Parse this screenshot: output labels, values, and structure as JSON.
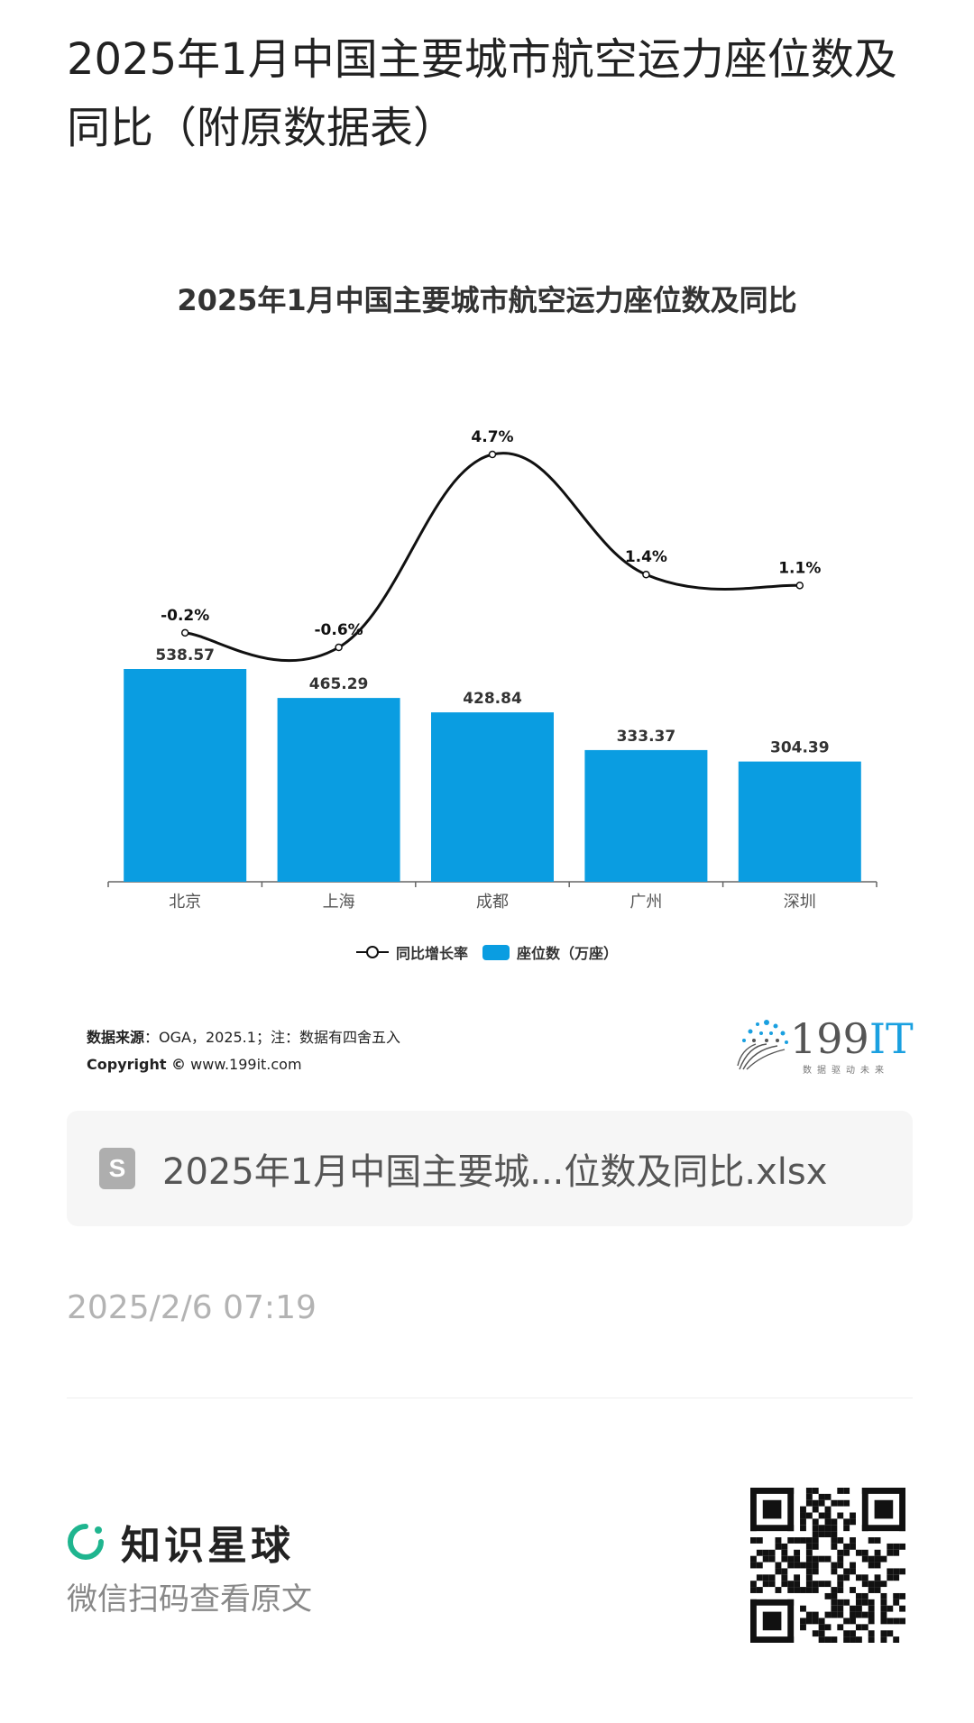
{
  "post": {
    "title": "2025年1月中国主要城市航空运力座位数及同比（附原数据表）"
  },
  "chart_data": {
    "type": "bar",
    "title": "2025年1月中国主要城市航空运力座位数及同比",
    "categories": [
      "北京",
      "上海",
      "成都",
      "广州",
      "深圳"
    ],
    "series": [
      {
        "name": "座位数（万座）",
        "type": "bar",
        "values": [
          538.57,
          465.29,
          428.84,
          333.37,
          304.39
        ],
        "labels": [
          "538.57",
          "465.29",
          "428.84",
          "333.37",
          "304.39"
        ],
        "color": "#0a9de1"
      },
      {
        "name": "同比增长率",
        "type": "line",
        "values": [
          -0.2,
          -0.6,
          4.7,
          1.4,
          1.1
        ],
        "labels": [
          "-0.2%",
          "-0.6%",
          "4.7%",
          "1.4%",
          "1.1%"
        ],
        "color": "#111111"
      }
    ],
    "legend": [
      "同比增长率",
      "座位数（万座）"
    ],
    "legend_position": "bottom"
  },
  "source": {
    "label": "数据来源",
    "text": "：OGA，2025.1；注：数据有四舍五入",
    "copyright_label": "Copyright ©",
    "copyright_url": "www.199it.com"
  },
  "logo": {
    "num": "199",
    "it": "IT",
    "tagline": "数据驱动未来"
  },
  "file": {
    "icon_letter": "S",
    "name": "2025年1月中国主要城...位数及同比.xlsx"
  },
  "timestamp": "2025/2/6 07:19",
  "brand": {
    "name": "知识星球",
    "subtitle": "微信扫码查看原文",
    "color": "#1fb58f"
  }
}
